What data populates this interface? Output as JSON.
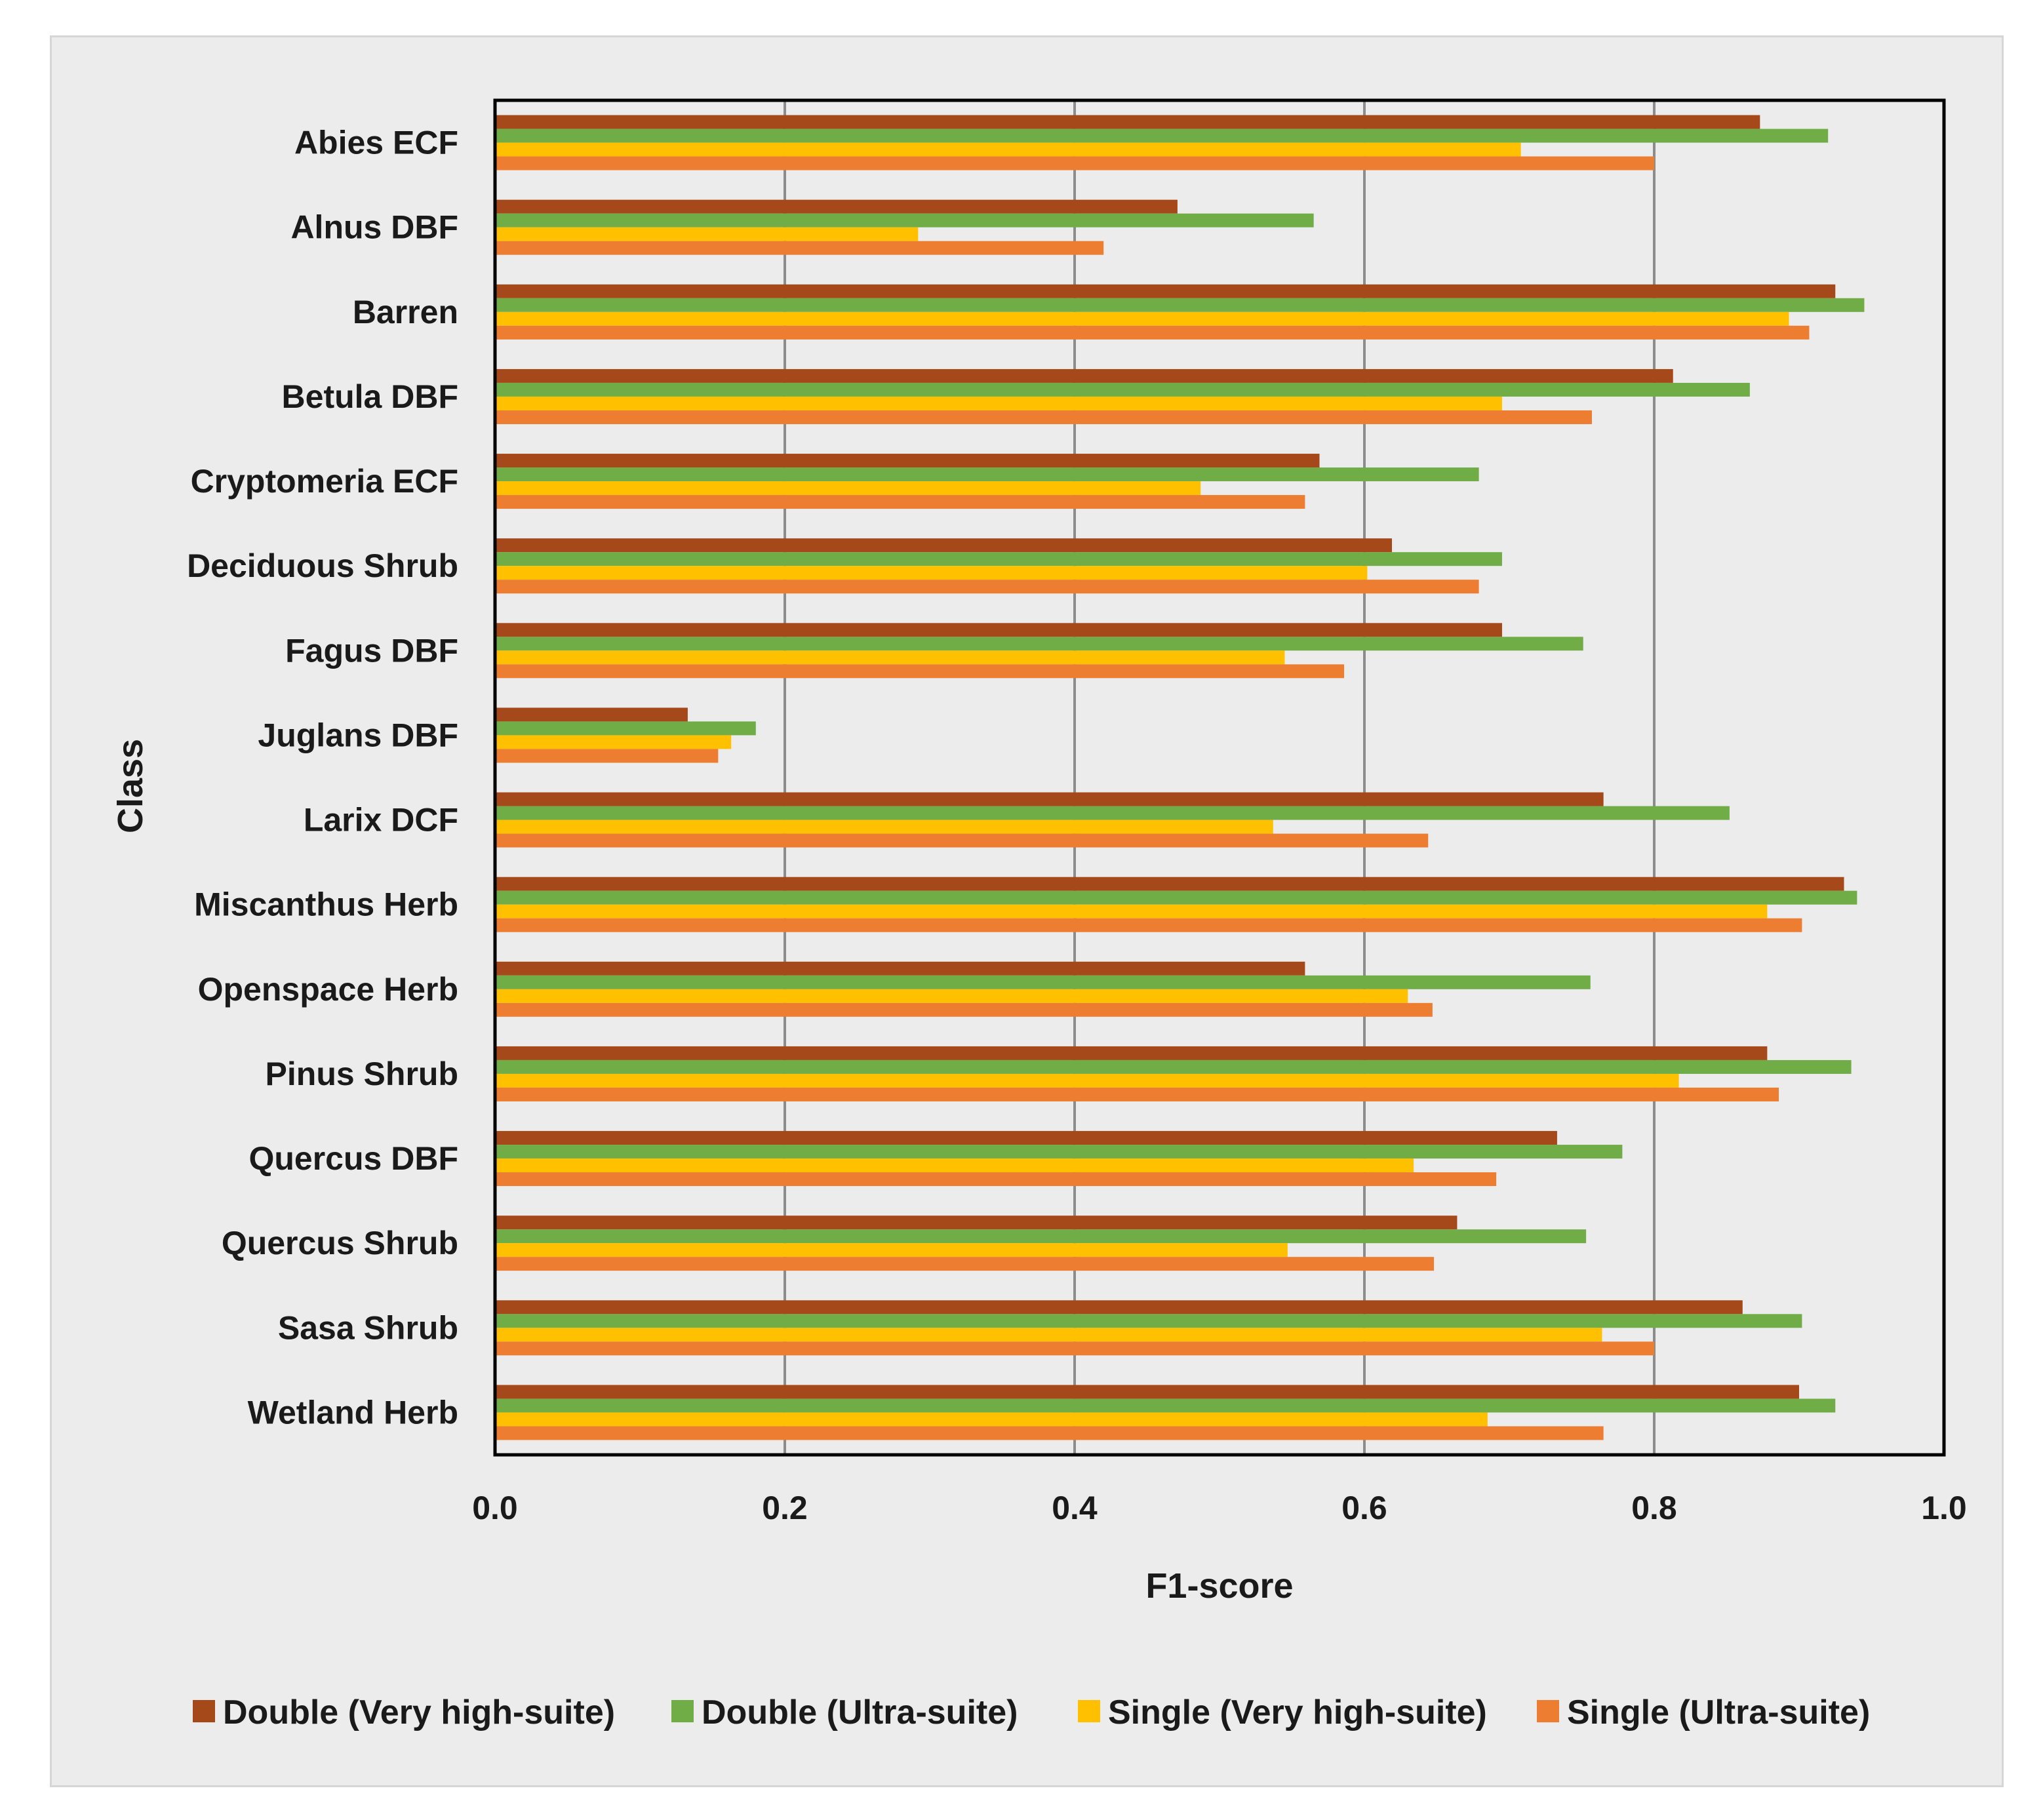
{
  "chart_data": {
    "type": "bar",
    "orientation": "horizontal",
    "title": "",
    "xlabel": "F1-score",
    "ylabel": "Class",
    "xlim": [
      0.0,
      1.0
    ],
    "xticks": [
      "0.0",
      "0.2",
      "0.4",
      "0.6",
      "0.8",
      "1.0"
    ],
    "grid": "vertical",
    "legend_position": "bottom",
    "categories": [
      "Abies ECF",
      "Alnus DBF",
      "Barren",
      "Betula DBF",
      "Cryptomeria ECF",
      "Deciduous Shrub",
      "Fagus DBF",
      "Juglans DBF",
      "Larix DCF",
      "Miscanthus Herb",
      "Openspace Herb",
      "Pinus Shrub",
      "Quercus DBF",
      "Quercus Shrub",
      "Sasa Shrub",
      "Wetland Herb"
    ],
    "series": [
      {
        "name": "Double (Very high-suite)",
        "color": "#a5491a",
        "values": [
          0.873,
          0.471,
          0.925,
          0.813,
          0.569,
          0.619,
          0.695,
          0.133,
          0.765,
          0.931,
          0.559,
          0.878,
          0.733,
          0.664,
          0.861,
          0.9
        ]
      },
      {
        "name": "Double (Ultra-suite)",
        "color": "#70ad47",
        "values": [
          0.92,
          0.565,
          0.945,
          0.866,
          0.679,
          0.695,
          0.751,
          0.18,
          0.852,
          0.94,
          0.756,
          0.936,
          0.778,
          0.753,
          0.902,
          0.925
        ]
      },
      {
        "name": "Single (Very high-suite)",
        "color": "#ffc000",
        "values": [
          0.708,
          0.292,
          0.893,
          0.695,
          0.487,
          0.602,
          0.545,
          0.163,
          0.537,
          0.878,
          0.63,
          0.817,
          0.634,
          0.547,
          0.764,
          0.685
        ]
      },
      {
        "name": "Single (Ultra-suite)",
        "color": "#ed7d31",
        "values": [
          0.8,
          0.42,
          0.907,
          0.757,
          0.559,
          0.679,
          0.586,
          0.154,
          0.644,
          0.902,
          0.647,
          0.886,
          0.691,
          0.648,
          0.8,
          0.765
        ]
      }
    ]
  }
}
